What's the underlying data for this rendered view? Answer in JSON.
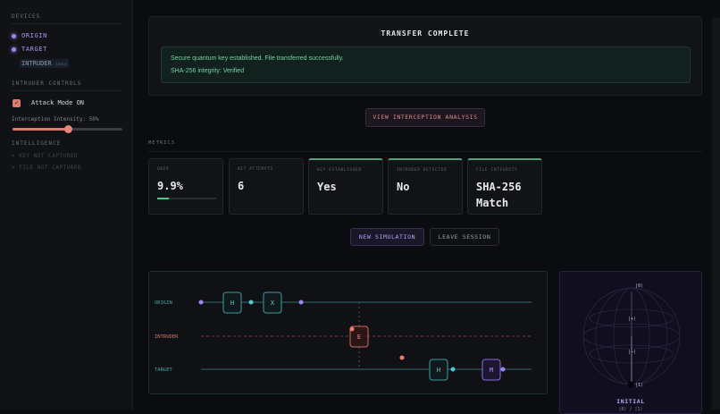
{
  "sidebar": {
    "devices_title": "DEVICES",
    "devices": [
      {
        "label": "ORIGIN"
      },
      {
        "label": "TARGET"
      }
    ],
    "intruder": {
      "label": "INTRUDER",
      "tag": "(you)"
    },
    "controls_title": "INTRUDER CONTROLS",
    "attack_mode": {
      "label": "Attack Mode ON",
      "checked": true
    },
    "intensity": {
      "label": "Interception Intensity: 50%",
      "value_percent": 50
    },
    "intel_title": "INTELLIGENCE",
    "intel": [
      "× KEY NOT CAPTURED",
      "× FILE NOT CAPTURED"
    ]
  },
  "status": {
    "title": "TRANSFER COMPLETE",
    "line1": "Secure quantum key established. File transferred successfully.",
    "line2": "SHA-256 integrity: Verified"
  },
  "analysis_button": "VIEW INTERCEPTION ANALYSIS",
  "metrics": {
    "title": "METRICS",
    "cards": [
      {
        "label": "QBER",
        "value": "9.9%",
        "progress_percent": 9.9
      },
      {
        "label": "KEY ATTEMPTS",
        "value": "6"
      },
      {
        "label": "KEY ESTABLISHED",
        "value": "Yes"
      },
      {
        "label": "INTRUDER DETECTED",
        "value": "No"
      },
      {
        "label": "FILE INTEGRITY",
        "value": "SHA-256 Match"
      }
    ]
  },
  "actions": {
    "new": "NEW SIMULATION",
    "leave": "LEAVE SESSION"
  },
  "circuit": {
    "rows": [
      "ORIGIN",
      "INTRUDER",
      "TARGET"
    ],
    "gates": {
      "origin": [
        "H",
        "X"
      ],
      "intruder": [
        "E"
      ],
      "target": [
        "H",
        "M"
      ]
    }
  },
  "bloch": {
    "ket0": "|0⟩",
    "plus": "|+⟩",
    "minus": "|−⟩",
    "ket1": "|1⟩",
    "state": "INITIAL",
    "sub": "|0⟩ / |1⟩"
  },
  "colors": {
    "accent": "#9b86f0",
    "teal": "#4ba3a8",
    "intruder": "#e07b6f",
    "success": "#4fc58f"
  }
}
